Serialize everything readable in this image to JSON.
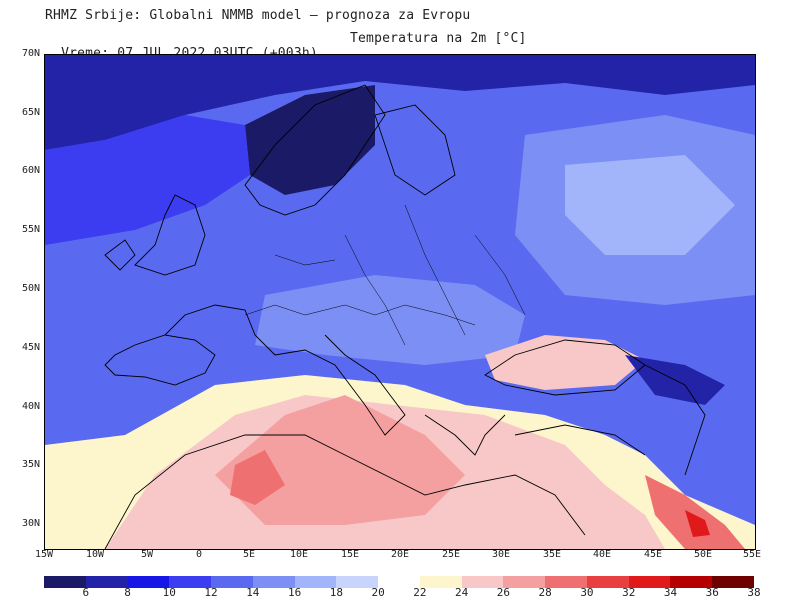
{
  "header": {
    "line1": "RHMZ Srbije: Globalni NMMB model — prognoza za Evropu",
    "line2": "Vreme: 07 JUL 2022 03UTC (+003h)",
    "param": "Temperatura na 2m [°C]"
  },
  "map": {
    "lat_labels": [
      "70N",
      "65N",
      "60N",
      "55N",
      "50N",
      "45N",
      "40N",
      "35N",
      "30N"
    ],
    "lon_labels": [
      "15W",
      "10W",
      "5W",
      "0",
      "5E",
      "10E",
      "15E",
      "20E",
      "25E",
      "30E",
      "35E",
      "40E",
      "45E",
      "50E",
      "55E"
    ]
  },
  "legend": {
    "labels": [
      "6",
      "8",
      "10",
      "12",
      "14",
      "16",
      "18",
      "20",
      "22",
      "24",
      "26",
      "28",
      "30",
      "32",
      "34",
      "36",
      "38"
    ],
    "colors": [
      "#1a1a66",
      "#2323a8",
      "#1616e6",
      "#3c3cf0",
      "#5a6af0",
      "#7c8ff5",
      "#a2b4fa",
      "#c8d4fc",
      "#ffffff",
      "#fdf6cc",
      "#f8c8c8",
      "#f4a0a0",
      "#ee7070",
      "#e84040",
      "#e01a1a",
      "#b40000",
      "#6e0000"
    ]
  }
}
